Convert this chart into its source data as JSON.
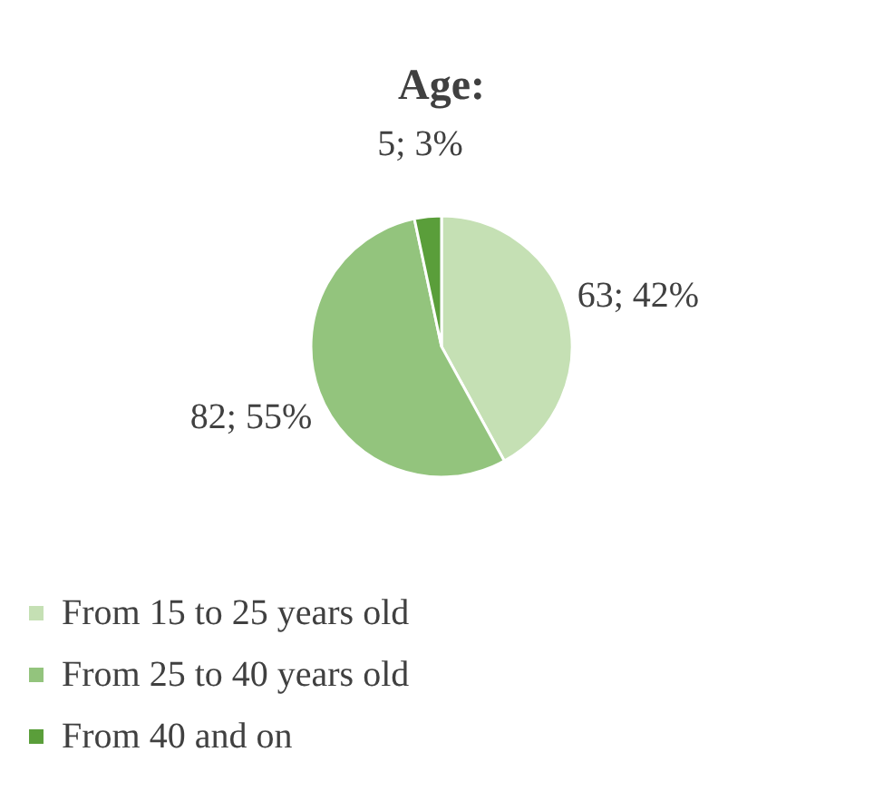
{
  "chart_data": {
    "type": "pie",
    "title": "Age:",
    "categories": [
      "From 15 to 25 years old",
      "From 25 to 40 years old",
      "From 40 and on"
    ],
    "values": [
      63,
      82,
      5
    ],
    "colors": [
      "#c5e0b4",
      "#93c47d",
      "#5a9e3a"
    ],
    "value_labels": [
      "63; 42%",
      "82; 55%",
      "5; 3%"
    ],
    "legend": "bottom"
  }
}
